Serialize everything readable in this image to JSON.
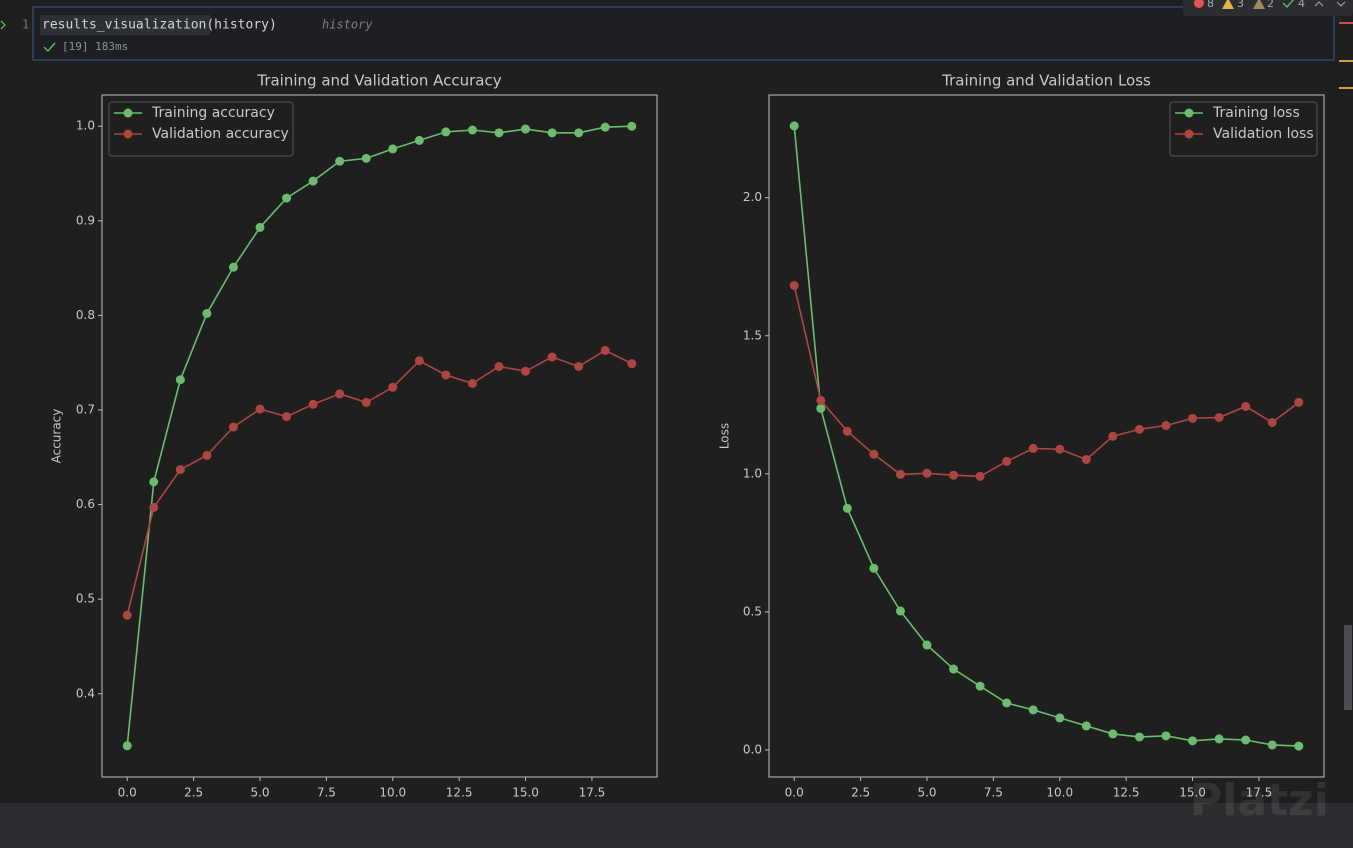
{
  "editor": {
    "line_number": "1",
    "code": "results_visualization(history)",
    "hint": "history",
    "status": "[19] 183ms",
    "indicators": {
      "errors": "8",
      "warnings": "3",
      "weak_warnings": "2",
      "typos": "4"
    }
  },
  "watermark": "Platzi",
  "chart_data": [
    {
      "type": "line",
      "title": "Training and Validation Accuracy",
      "y_label": "Accuracy",
      "legend": "upper left",
      "grid": false,
      "x": [
        0,
        1,
        2,
        3,
        4,
        5,
        6,
        7,
        8,
        9,
        10,
        11,
        12,
        13,
        14,
        15,
        16,
        17,
        18,
        19
      ],
      "xlim": [
        -0.95,
        19.95
      ],
      "xticks": [
        {
          "value": 0,
          "label": "0.0"
        },
        2.5,
        {
          "value": 5,
          "label": "5.0"
        },
        7.5,
        {
          "value": 10,
          "label": "10.0"
        },
        12.5,
        {
          "value": 15,
          "label": "15.0"
        },
        17.5
      ],
      "ylim": [
        0.312,
        1.033
      ],
      "yticks": [
        0.4,
        0.5,
        0.6,
        0.7,
        0.8,
        0.9,
        {
          "value": 1,
          "label": "1.0"
        }
      ],
      "series": [
        {
          "name": "Training accuracy",
          "color": "#6dbb6f",
          "values": [
            0.345,
            0.624,
            0.732,
            0.802,
            0.851,
            0.893,
            0.924,
            0.942,
            0.963,
            0.966,
            0.976,
            0.985,
            0.994,
            0.996,
            0.993,
            0.997,
            0.993,
            0.993,
            0.999,
            1.0
          ]
        },
        {
          "name": "Validation accuracy",
          "color": "#ad4543",
          "values": [
            0.483,
            0.597,
            0.637,
            0.652,
            0.682,
            0.701,
            0.693,
            0.706,
            0.717,
            0.708,
            0.724,
            0.752,
            0.737,
            0.728,
            0.746,
            0.741,
            0.756,
            0.746,
            0.763,
            0.749
          ]
        }
      ]
    },
    {
      "type": "line",
      "title": "Training and Validation Loss",
      "y_label": "Loss",
      "legend": "upper right",
      "grid": false,
      "x": [
        0,
        1,
        2,
        3,
        4,
        5,
        6,
        7,
        8,
        9,
        10,
        11,
        12,
        13,
        14,
        15,
        16,
        17,
        18,
        19
      ],
      "xlim": [
        -0.95,
        19.95
      ],
      "xticks": [
        {
          "value": 0,
          "label": "0.0"
        },
        2.5,
        {
          "value": 5,
          "label": "5.0"
        },
        7.5,
        {
          "value": 10,
          "label": "10.0"
        },
        12.5,
        {
          "value": 15,
          "label": "15.0"
        },
        17.5
      ],
      "ylim": [
        -0.098,
        2.372
      ],
      "yticks": [
        {
          "value": 0,
          "label": "0.0"
        },
        0.5,
        {
          "value": 1,
          "label": "1.0"
        },
        1.5,
        {
          "value": 2,
          "label": "2.0"
        }
      ],
      "series": [
        {
          "name": "Training loss",
          "color": "#6dbb6f",
          "values": [
            2.26,
            1.237,
            0.875,
            0.658,
            0.503,
            0.38,
            0.293,
            0.231,
            0.17,
            0.145,
            0.116,
            0.087,
            0.058,
            0.047,
            0.051,
            0.033,
            0.04,
            0.036,
            0.018,
            0.014
          ]
        },
        {
          "name": "Validation loss",
          "color": "#ad4543",
          "values": [
            1.682,
            1.266,
            1.154,
            1.071,
            0.998,
            1.002,
            0.995,
            0.991,
            1.045,
            1.092,
            1.089,
            1.052,
            1.136,
            1.161,
            1.175,
            1.201,
            1.204,
            1.244,
            1.186,
            1.259
          ]
        }
      ]
    }
  ]
}
